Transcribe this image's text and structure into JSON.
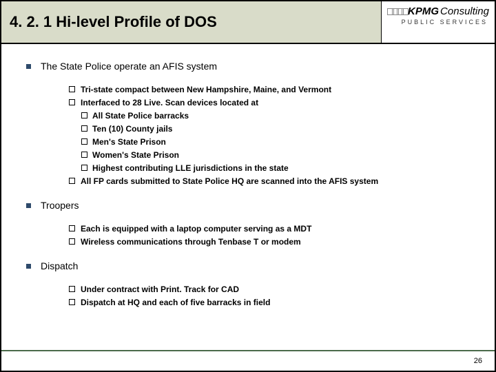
{
  "header": {
    "title": "4. 2. 1 Hi-level Profile of DOS",
    "logo_brand": "KPMG",
    "logo_sub": "Consulting",
    "tagline": "PUBLIC SERVICES"
  },
  "sections": [
    {
      "title": "The State Police operate an AFIS system",
      "items": [
        {
          "text": "Tri-state compact between New Hampshire, Maine, and Vermont"
        },
        {
          "text": "Interfaced to 28 Live. Scan devices located at",
          "sub": [
            "All State Police barracks",
            "Ten (10) County jails",
            "Men's State Prison",
            "Women's State Prison",
            "Highest contributing LLE jurisdictions in the state"
          ]
        },
        {
          "text": "All FP cards submitted to State Police HQ are scanned into the AFIS system"
        }
      ]
    },
    {
      "title": "Troopers",
      "items": [
        {
          "text": "Each is equipped with a laptop computer serving as a MDT"
        },
        {
          "text": "Wireless communications through Tenbase T or modem"
        }
      ]
    },
    {
      "title": "Dispatch",
      "items": [
        {
          "text": "Under contract with Print. Track for CAD"
        },
        {
          "text": "Dispatch at HQ and each of five barracks in field"
        }
      ]
    }
  ],
  "page_number": "26",
  "colors": {
    "header_bg": "#d9dcc9",
    "bullet_l1": "#2e4a6b",
    "footer_line": "#4a6a4a"
  }
}
